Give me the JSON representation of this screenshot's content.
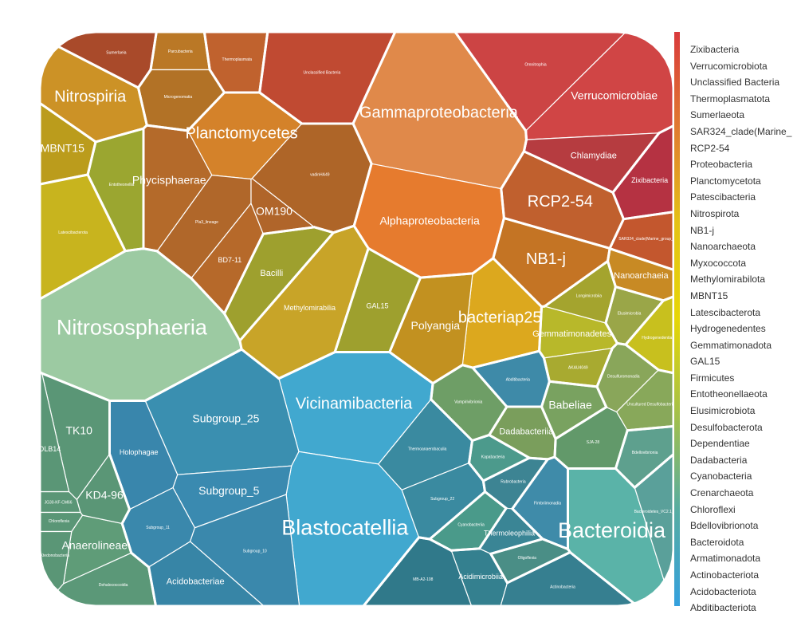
{
  "chart_data": {
    "type": "voronoi-treemap",
    "legend": [
      {
        "name": "Zixibacteria",
        "color": "#d93a3c"
      },
      {
        "name": "Verrucomicrobiota",
        "color": "#d64a40"
      },
      {
        "name": "Unclassified Bacteria",
        "color": "#d4583c"
      },
      {
        "name": "Thermoplasmatota",
        "color": "#d26a3a"
      },
      {
        "name": "Sumerlaeota",
        "color": "#d27438"
      },
      {
        "name": "SAR324_clade(Marine_",
        "color": "#d48238"
      },
      {
        "name": "RCP2-54",
        "color": "#d68a36"
      },
      {
        "name": "Proteobacteria",
        "color": "#e07a30"
      },
      {
        "name": "Planctomycetota",
        "color": "#d98a2c"
      },
      {
        "name": "Patescibacteria",
        "color": "#dc9a2a"
      },
      {
        "name": "Nitrospirota",
        "color": "#deaa26"
      },
      {
        "name": "NB1-j",
        "color": "#e0b422"
      },
      {
        "name": "Nanoarchaeota",
        "color": "#e2bc1c"
      },
      {
        "name": "Myxococcota",
        "color": "#e4c216"
      },
      {
        "name": "Methylomirabilota",
        "color": "#e6ca10"
      },
      {
        "name": "MBNT15",
        "color": "#e6d00a"
      },
      {
        "name": "Latescibacterota",
        "color": "#e6d606"
      },
      {
        "name": "Hydrogenedentes",
        "color": "#e2d40a"
      },
      {
        "name": "Gemmatimonadota",
        "color": "#cfcf24"
      },
      {
        "name": "GAL15",
        "color": "#b8c73a"
      },
      {
        "name": "Firmicutes",
        "color": "#a4c04a"
      },
      {
        "name": "Entotheonellaeota",
        "color": "#94b95c"
      },
      {
        "name": "Elusimicrobiota",
        "color": "#86b26a"
      },
      {
        "name": "Desulfobacterota",
        "color": "#7aaf78"
      },
      {
        "name": "Dependentiae",
        "color": "#6cae86"
      },
      {
        "name": "Dadabacteria",
        "color": "#60ad94"
      },
      {
        "name": "Cyanobacteria",
        "color": "#56aca2"
      },
      {
        "name": "Crenarchaeota",
        "color": "#4eabb0"
      },
      {
        "name": "Chloroflexi",
        "color": "#46aabe"
      },
      {
        "name": "Bdellovibrionota",
        "color": "#40aaca"
      },
      {
        "name": "Bacteroidota",
        "color": "#3aa8d4"
      },
      {
        "name": "Armatimonadota",
        "color": "#36a6da"
      },
      {
        "name": "Actinobacteriota",
        "color": "#34a4dc"
      },
      {
        "name": "Acidobacteriota",
        "color": "#34a2dd"
      },
      {
        "name": "Abditibacteriota",
        "color": "#34a0de"
      }
    ],
    "color_scale": [
      "#d93a3c",
      "#e07a30",
      "#e4c216",
      "#e6d606",
      "#a4c04a",
      "#56aca2",
      "#34a0de"
    ],
    "cells": [
      {
        "label": "Nitrososphaeria",
        "phylum": "Crenarchaeota",
        "color": "#9ccaa2",
        "size": "xl"
      },
      {
        "label": "Gammaproteobacteria",
        "phylum": "Proteobacteria",
        "color": "#e0894a",
        "size": "l"
      },
      {
        "label": "Alphaproteobacteria",
        "phylum": "Proteobacteria",
        "color": "#e67b2e",
        "size": "m"
      },
      {
        "label": "Vicinamibacteria",
        "phylum": "Acidobacteriota",
        "color": "#41a8cf",
        "size": "l"
      },
      {
        "label": "Blastocatellia",
        "phylum": "Acidobacteriota",
        "color": "#41a8cf",
        "size": "xl"
      },
      {
        "label": "Bacteroidia",
        "phylum": "Bacteroidota",
        "color": "#5ab3a8",
        "size": "xl"
      },
      {
        "label": "Verrucomicrobiae",
        "phylum": "Verrucomicrobiota",
        "color": "#d04545",
        "size": "m"
      },
      {
        "label": "Chlamydiae",
        "phylum": "Verrucomicrobiota",
        "color": "#b63c40",
        "size": "s"
      },
      {
        "label": "Zixibacteria",
        "phylum": "Zixibacteria",
        "color": "#b53242",
        "size": "xs"
      },
      {
        "label": "RCP2-54",
        "phylum": "RCP2-54",
        "color": "#c0602e",
        "size": "l"
      },
      {
        "label": "SAR324_clade(Marine_group_...",
        "phylum": "SAR324_clade(Marine_",
        "color": "#c3572e",
        "size": "xxs"
      },
      {
        "label": "NB1-j",
        "phylum": "NB1-j",
        "color": "#c47424",
        "size": "l"
      },
      {
        "label": "Nanoarchaeia",
        "phylum": "Nanoarchaeota",
        "color": "#c88a24",
        "size": "s"
      },
      {
        "label": "bacteriap25",
        "phylum": "Myxococcota",
        "color": "#dca81e",
        "size": "l"
      },
      {
        "label": "Polyangia",
        "phylum": "Myxococcota",
        "color": "#c29120",
        "size": "m"
      },
      {
        "label": "Gemmatimonadetes",
        "phylum": "Gemmatimonadota",
        "color": "#b8b82a",
        "size": "s"
      },
      {
        "label": "Hydrogenedentia",
        "phylum": "Hydrogenedentes",
        "color": "#c8c01e",
        "size": "xxs"
      },
      {
        "label": "AKAU4049",
        "phylum": "Gemmatimonadota",
        "color": "#a8aa30",
        "size": "xxs"
      },
      {
        "label": "Longimicrobiia",
        "phylum": "Gemmatimonadota",
        "color": "#a4a42e",
        "size": "xxs"
      },
      {
        "label": "Babeliae",
        "phylum": "Dependentiae",
        "color": "#79a260",
        "size": "m"
      },
      {
        "label": "Uncultured Desulfobacteria",
        "phylum": "Desulfobacterota",
        "color": "#88a85a",
        "size": "xxs"
      },
      {
        "label": "SJA-28",
        "phylum": "Desulfobacterota",
        "color": "#62996a",
        "size": "xxs"
      },
      {
        "label": "Bdellovibrionia",
        "phylum": "Bdellovibrionota",
        "color": "#5ea08e",
        "size": "xxs"
      },
      {
        "label": "Dadabacteriia",
        "phylum": "Dadabacteria",
        "color": "#7a9e5c",
        "size": "s"
      },
      {
        "label": "Vampirivibrionia",
        "phylum": "Cyanobacteria",
        "color": "#6e9e66",
        "size": "xxs"
      },
      {
        "label": "Thermoanaerobaculia",
        "phylum": "Acidobacteriota",
        "color": "#3a8aa0",
        "size": "xxs"
      },
      {
        "label": "Subgroup_22",
        "phylum": "Acidobacteriota",
        "color": "#3a8aa0",
        "size": "xxs"
      },
      {
        "label": "Rubrobacteria",
        "phylum": "Actinobacteriota",
        "color": "#3d8493",
        "size": "xxs"
      },
      {
        "label": "Thermoleophilia",
        "phylum": "Actinobacteriota",
        "color": "#3a8595",
        "size": "xs"
      },
      {
        "label": "Acidimicrobiia",
        "phylum": "Actinobacteriota",
        "color": "#34808f",
        "size": "xs"
      },
      {
        "label": "MB-A2-108",
        "phylum": "Actinobacteriota",
        "color": "#30798a",
        "size": "xxs"
      },
      {
        "label": "Actinobacteria",
        "phylum": "Actinobacteriota",
        "color": "#367f90",
        "size": "xxs"
      },
      {
        "label": "Subgroup_25",
        "phylum": "Acidobacteriota",
        "color": "#3a8fb0",
        "size": "m"
      },
      {
        "label": "Subgroup_5",
        "phylum": "Acidobacteriota",
        "color": "#3a8ab0",
        "size": "m"
      },
      {
        "label": "Subgroup_11",
        "phylum": "Acidobacteriota",
        "color": "#3a88ac",
        "size": "xxs"
      },
      {
        "label": "Subgroup_10",
        "phylum": "Acidobacteriota",
        "color": "#3a88ac",
        "size": "xxs"
      },
      {
        "label": "Holophagae",
        "phylum": "Acidobacteriota",
        "color": "#3986ac",
        "size": "xs"
      },
      {
        "label": "Acidobacteriae",
        "phylum": "Acidobacteriota",
        "color": "#3785a6",
        "size": "s"
      },
      {
        "label": "Anaerolineae",
        "phylum": "Chloroflexi",
        "color": "#5f9c78",
        "size": "m"
      },
      {
        "label": "Dehalococcoidia",
        "phylum": "Chloroflexi",
        "color": "#5b9878",
        "size": "xxs"
      },
      {
        "label": "KD4-96",
        "phylum": "Chloroflexi",
        "color": "#5a9676",
        "size": "m"
      },
      {
        "label": "TK10",
        "phylum": "Chloroflexi",
        "color": "#5a9676",
        "size": "m"
      },
      {
        "label": "JG30-KF-CM66",
        "phylum": "Chloroflexi",
        "color": "#5a9676",
        "size": "xxs"
      },
      {
        "label": "Chloroflexia",
        "phylum": "Chloroflexi",
        "color": "#5a9676",
        "size": "xxs"
      },
      {
        "label": "Ktedonobacteria",
        "phylum": "Chloroflexi",
        "color": "#5a9676",
        "size": "xxs"
      },
      {
        "label": "OLB14",
        "phylum": "Chloroflexi",
        "color": "#5a9676",
        "size": "xs"
      },
      {
        "label": "Nitrospiria",
        "phylum": "Nitrospirota",
        "color": "#cc9226",
        "size": "l"
      },
      {
        "label": "MBNT15",
        "phylum": "MBNT15",
        "color": "#bb9c1c",
        "size": "m"
      },
      {
        "label": "Latescibacterota",
        "phylum": "Latescibacterota",
        "color": "#c8b41e",
        "size": "xxs"
      },
      {
        "label": "Entotheonellia",
        "phylum": "Entotheonellaeota",
        "color": "#9ba630",
        "size": "xxs"
      },
      {
        "label": "Planctomycetes",
        "phylum": "Planctomycetota",
        "color": "#d4822a",
        "size": "l"
      },
      {
        "label": "Phycisphaerae",
        "phylum": "Planctomycetota",
        "color": "#b46a2a",
        "size": "m"
      },
      {
        "label": "Pla3_lineage",
        "phylum": "Planctomycetota",
        "color": "#b0672a",
        "size": "xxs"
      },
      {
        "label": "BD7-11",
        "phylum": "Planctomycetota",
        "color": "#b6692a",
        "size": "xs"
      },
      {
        "label": "OM190",
        "phylum": "Planctomycetota",
        "color": "#b0652a",
        "size": "m"
      },
      {
        "label": "vadinHA49",
        "phylum": "Planctomycetota",
        "color": "#ae6528",
        "size": "xxs"
      },
      {
        "label": "Bacilli",
        "phylum": "Firmicutes",
        "color": "#9ea02e",
        "size": "s"
      },
      {
        "label": "Methylomirabilia",
        "phylum": "Methylomirabilota",
        "color": "#c8a428",
        "size": "xs"
      },
      {
        "label": "GAL15",
        "phylum": "GAL15",
        "color": "#9ea02e",
        "size": "xs"
      },
      {
        "label": "Sumerlaeia",
        "phylum": "Sumerlaeota",
        "color": "#a94a2a",
        "size": "xxs"
      },
      {
        "label": "Parcubacteria",
        "phylum": "Patescibacteria",
        "color": "#ba7826",
        "size": "xxs"
      },
      {
        "label": "Microgenomatia",
        "phylum": "Patescibacteria",
        "color": "#b27226",
        "size": "xxs"
      },
      {
        "label": "Thermoplasmata",
        "phylum": "Thermoplasmatota",
        "color": "#c0622e",
        "size": "xxs"
      },
      {
        "label": "Unclassified Bacteria",
        "phylum": "Unclassified Bacteria",
        "color": "#c04a32",
        "size": "xxs"
      },
      {
        "label": "Omnitrophia",
        "phylum": "Verrucomicrobiota",
        "color": "#cc4444",
        "size": "xxs"
      },
      {
        "label": "Elusimicrobia",
        "phylum": "Elusimicrobiota",
        "color": "#9aa648",
        "size": "xxs"
      },
      {
        "label": "Desulfuromonadia",
        "phylum": "Desulfobacterota",
        "color": "#89a65a",
        "size": "xxs"
      },
      {
        "label": "Bacteroidetes_VC2.1_Bac22",
        "phylum": "Bacteroidota",
        "color": "#5aa09a",
        "size": "xxs"
      },
      {
        "label": "Abditibacteria",
        "phylum": "Abditibacteriota",
        "color": "#3e8aa8",
        "size": "xxs"
      },
      {
        "label": "Fimbriimonadia",
        "phylum": "Armatimonadota",
        "color": "#3f8ba9",
        "size": "xxs"
      },
      {
        "label": "Cyanobacteriia",
        "phylum": "Cyanobacteria",
        "color": "#4a9a8a",
        "size": "xxs"
      },
      {
        "label": "Kapabacteria",
        "phylum": "Bacteroidota",
        "color": "#4c9a8c",
        "size": "xxs"
      },
      {
        "label": "Oligoflexia",
        "phylum": "Bdellovibrionota",
        "color": "#4a8e86",
        "size": "xxs"
      }
    ]
  }
}
